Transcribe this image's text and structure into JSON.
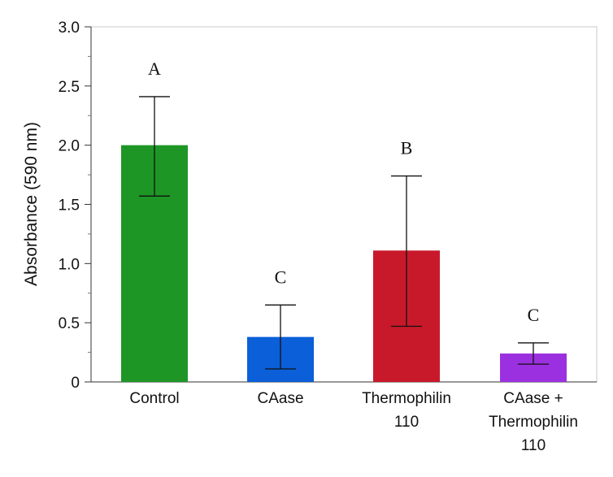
{
  "chart_data": {
    "type": "bar",
    "title": "",
    "xlabel": "",
    "ylabel": "Absorbance (590 nm)",
    "ylim": [
      0,
      3.0
    ],
    "yticks": [
      "0",
      "0.5",
      "1.0",
      "1.5",
      "2.0",
      "2.5",
      "3.0"
    ],
    "ytick_values": [
      0,
      0.5,
      1.0,
      1.5,
      2.0,
      2.5,
      3.0
    ],
    "grid": false,
    "categories": [
      [
        "Control"
      ],
      [
        "CAase"
      ],
      [
        "Thermophilin",
        "110"
      ],
      [
        "CAase +",
        "Thermophilin",
        "110"
      ]
    ],
    "values": [
      2.0,
      0.38,
      1.11,
      0.24
    ],
    "error_low": [
      1.57,
      0.11,
      0.47,
      0.15
    ],
    "error_high": [
      2.41,
      0.65,
      1.74,
      0.33
    ],
    "significance_labels": [
      "A",
      "C",
      "B",
      "C"
    ],
    "colors": [
      "#1e9626",
      "#0b5fd8",
      "#c8192b",
      "#9b30e0"
    ]
  }
}
